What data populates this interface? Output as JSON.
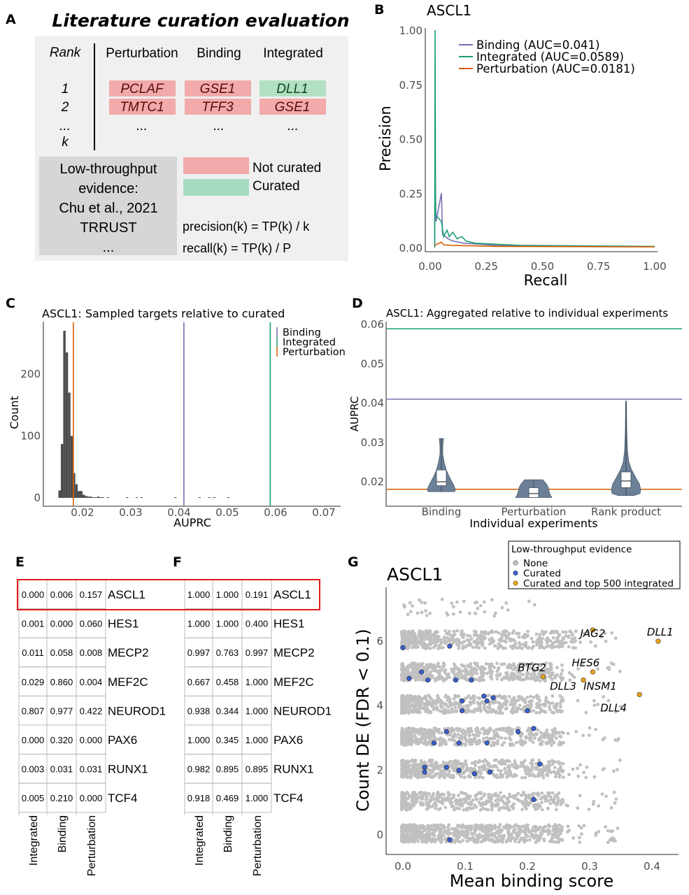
{
  "colors": {
    "binding": "#7570b3",
    "integrated": "#1b9e77",
    "perturbation": "#d95f02",
    "not_curated": "#f2aaaa",
    "curated": "#b3e0c3",
    "violin": "#6c8098",
    "gray_point": "#c0c0c0",
    "curated_point": "#3a5fcd",
    "top_point": "#e8a317",
    "highlight": "#e31a1c"
  },
  "panelA": {
    "letter": "A",
    "title": "Literature curation evaluation",
    "headers": {
      "rank": "Rank",
      "perturbation": "Perturbation",
      "binding": "Binding",
      "integrated": "Integrated"
    },
    "rows": [
      {
        "rank": "1",
        "perturbation": "PCLAF",
        "binding": "GSE1",
        "integrated": "DLL1",
        "integrated_curated": true
      },
      {
        "rank": "2",
        "perturbation": "TMTC1",
        "binding": "TFF3",
        "integrated": "GSE1",
        "integrated_curated": false
      }
    ],
    "ellipsis": "...",
    "rank_k": "k",
    "evidence_lines": [
      "Low-throughput",
      "evidence:",
      "Chu et al., 2021",
      "TRRUST",
      "..."
    ],
    "legend": {
      "not_curated": "Not curated",
      "curated": "Curated"
    },
    "precision_formula": "precision(k) = TP(k) / k",
    "recall_formula": "recall(k) = TP(k) / P"
  },
  "chart_data": [
    {
      "panel": "B",
      "type": "line",
      "title": "ASCL1",
      "xlabel": "Recall",
      "ylabel": "Precision",
      "xlim": [
        0,
        1
      ],
      "ylim": [
        0,
        1
      ],
      "xticks": [
        "0.00",
        "0.25",
        "0.50",
        "0.75",
        "1.00"
      ],
      "yticks": [
        "0.00",
        "0.25",
        "0.50",
        "0.75",
        "1.00"
      ],
      "legend_position": "top-right",
      "series": [
        {
          "name": "Binding (AUC=0.041)",
          "key": "binding",
          "points": [
            [
              0.02,
              0
            ],
            [
              0.022,
              0.33
            ],
            [
              0.026,
              0.12
            ],
            [
              0.05,
              0.25
            ],
            [
              0.055,
              0.06
            ],
            [
              0.08,
              0.04
            ],
            [
              0.1,
              0.03
            ],
            [
              0.15,
              0.02
            ],
            [
              0.3,
              0.01
            ],
            [
              1,
              0.004
            ]
          ]
        },
        {
          "name": "Integrated (AUC=0.0589)",
          "key": "integrated",
          "points": [
            [
              0.02,
              0
            ],
            [
              0.022,
              1.0
            ],
            [
              0.024,
              0.15
            ],
            [
              0.05,
              0.12
            ],
            [
              0.06,
              0.05
            ],
            [
              0.075,
              0.08
            ],
            [
              0.085,
              0.05
            ],
            [
              0.1,
              0.07
            ],
            [
              0.12,
              0.04
            ],
            [
              0.14,
              0.05
            ],
            [
              0.16,
              0.03
            ],
            [
              0.2,
              0.02
            ],
            [
              0.4,
              0.01
            ],
            [
              1,
              0.005
            ]
          ]
        },
        {
          "name": "Perturbation (AUC=0.0181)",
          "key": "perturbation",
          "points": [
            [
              0.02,
              0.01
            ],
            [
              0.05,
              0.025
            ],
            [
              0.06,
              0.012
            ],
            [
              0.1,
              0.01
            ],
            [
              0.3,
              0.005
            ],
            [
              1,
              0.003
            ]
          ]
        }
      ]
    },
    {
      "panel": "C",
      "type": "bar",
      "title": "ASCL1: Sampled targets relative to curated",
      "xlabel": "AUPRC",
      "ylabel": "Count",
      "xlim": [
        0.012,
        0.073
      ],
      "ylim": [
        -10,
        280
      ],
      "xticks": [
        "0.02",
        "0.03",
        "0.04",
        "0.05",
        "0.06",
        "0.07"
      ],
      "yticks": [
        "0",
        "100",
        "200"
      ],
      "bin_width": 0.0005,
      "bins": [
        [
          0.015,
          12
        ],
        [
          0.0155,
          87
        ],
        [
          0.016,
          270
        ],
        [
          0.0165,
          235
        ],
        [
          0.017,
          170
        ],
        [
          0.0175,
          100
        ],
        [
          0.018,
          40
        ],
        [
          0.0185,
          22
        ],
        [
          0.019,
          11
        ],
        [
          0.0195,
          11
        ],
        [
          0.02,
          5
        ],
        [
          0.0205,
          3
        ],
        [
          0.021,
          2
        ],
        [
          0.0215,
          2
        ],
        [
          0.022,
          1
        ],
        [
          0.0225,
          1
        ],
        [
          0.023,
          2
        ],
        [
          0.0235,
          1
        ],
        [
          0.024,
          1
        ],
        [
          0.025,
          1
        ],
        [
          0.029,
          1
        ],
        [
          0.031,
          1
        ],
        [
          0.032,
          1
        ],
        [
          0.039,
          1
        ],
        [
          0.044,
          1
        ],
        [
          0.046,
          1
        ],
        [
          0.047,
          1
        ],
        [
          0.05,
          1
        ]
      ],
      "reference_lines": [
        {
          "name": "Binding",
          "key": "binding",
          "value": 0.041
        },
        {
          "name": "Integrated",
          "key": "integrated",
          "value": 0.0589
        },
        {
          "name": "Perturbation",
          "key": "perturbation",
          "value": 0.0181
        }
      ],
      "legend_position": "top-right"
    },
    {
      "panel": "D",
      "type": "violin",
      "title": "ASCL1: Aggregated relative to individual experiments",
      "xlabel": "Individual experiments",
      "ylabel": "AUPRC",
      "ylim": [
        0.0135,
        0.061
      ],
      "yticks": [
        "0.02",
        "0.03",
        "0.04",
        "0.05",
        "0.06"
      ],
      "categories": [
        "Binding",
        "Perturbation",
        "Rank product"
      ],
      "boxes": [
        {
          "min": 0.0175,
          "q1": 0.019,
          "median": 0.02,
          "q3": 0.023,
          "max": 0.031
        },
        {
          "min": 0.016,
          "q1": 0.016,
          "median": 0.017,
          "q3": 0.0185,
          "max": 0.0205
        },
        {
          "min": 0.0165,
          "q1": 0.0185,
          "median": 0.0202,
          "q3": 0.0225,
          "max": 0.0405
        }
      ],
      "reference_lines": [
        {
          "key": "integrated",
          "value": 0.0589
        },
        {
          "key": "binding",
          "value": 0.041
        },
        {
          "key": "perturbation",
          "value": 0.0181
        }
      ]
    },
    {
      "panel": "G",
      "type": "scatter",
      "title": "ASCL1",
      "xlabel": "Mean binding score",
      "ylabel": "Count DE (FDR < 0.1)",
      "xlim": [
        -0.025,
        0.445
      ],
      "ylim": [
        -0.55,
        7.9
      ],
      "xticks": [
        "0.0",
        "0.1",
        "0.2",
        "0.3",
        "0.4"
      ],
      "yticks": [
        "0",
        "2",
        "4",
        "6"
      ],
      "legend": {
        "title": "Low-throughput evidence",
        "items": [
          "None",
          "Curated",
          "Curated and top 500 integrated"
        ]
      },
      "curated_points": [
        [
          0.0,
          5.75
        ],
        [
          0.075,
          5.8
        ],
        [
          0.01,
          4.8
        ],
        [
          0.03,
          5.0
        ],
        [
          0.04,
          4.75
        ],
        [
          0.085,
          4.75
        ],
        [
          0.11,
          4.75
        ],
        [
          0.095,
          4.1
        ],
        [
          0.13,
          4.25
        ],
        [
          0.135,
          4.1
        ],
        [
          0.145,
          4.2
        ],
        [
          0.095,
          3.8
        ],
        [
          0.2,
          3.8
        ],
        [
          0.07,
          3.15
        ],
        [
          0.05,
          2.8
        ],
        [
          0.09,
          2.8
        ],
        [
          0.135,
          2.8
        ],
        [
          0.185,
          3.15
        ],
        [
          0.21,
          3.25
        ],
        [
          0.035,
          2.05
        ],
        [
          0.035,
          1.9
        ],
        [
          0.07,
          2.05
        ],
        [
          0.09,
          1.95
        ],
        [
          0.115,
          1.85
        ],
        [
          0.14,
          1.9
        ],
        [
          0.22,
          2.15
        ],
        [
          0.21,
          1.05
        ],
        [
          0.075,
          -0.2
        ]
      ],
      "top_points": [
        {
          "label": "JAG2",
          "x": 0.305,
          "y": 6.3
        },
        {
          "label": "DLL1",
          "x": 0.41,
          "y": 5.95
        },
        {
          "label": "HES6",
          "x": 0.305,
          "y": 5.0
        },
        {
          "label": "BTG2",
          "x": 0.225,
          "y": 4.85
        },
        {
          "label": "DLL3",
          "x": 0.29,
          "y": 4.75
        },
        {
          "label": "INSM1",
          "x": 0.29,
          "y": 4.75
        },
        {
          "label": "DLL4",
          "x": 0.38,
          "y": 4.3
        }
      ]
    }
  ],
  "panelE": {
    "letter": "E",
    "columns": [
      "Integrated",
      "Binding",
      "Perturbation"
    ],
    "rows": [
      {
        "tf": "ASCL1",
        "values": [
          "0.000",
          "0.006",
          "0.157"
        ]
      },
      {
        "tf": "HES1",
        "values": [
          "0.001",
          "0.000",
          "0.060"
        ]
      },
      {
        "tf": "MECP2",
        "values": [
          "0.011",
          "0.058",
          "0.008"
        ]
      },
      {
        "tf": "MEF2C",
        "values": [
          "0.029",
          "0.860",
          "0.004"
        ]
      },
      {
        "tf": "NEUROD1",
        "values": [
          "0.807",
          "0.977",
          "0.422"
        ]
      },
      {
        "tf": "PAX6",
        "values": [
          "0.000",
          "0.320",
          "0.000"
        ]
      },
      {
        "tf": "RUNX1",
        "values": [
          "0.003",
          "0.031",
          "0.031"
        ]
      },
      {
        "tf": "TCF4",
        "values": [
          "0.005",
          "0.210",
          "0.000"
        ]
      }
    ]
  },
  "panelF": {
    "letter": "F",
    "columns": [
      "Integrated",
      "Binding",
      "Perturbation"
    ],
    "rows": [
      {
        "tf": "ASCL1",
        "values": [
          "1.000",
          "1.000",
          "0.191"
        ]
      },
      {
        "tf": "HES1",
        "values": [
          "1.000",
          "1.000",
          "0.400"
        ]
      },
      {
        "tf": "MECP2",
        "values": [
          "0.997",
          "0.763",
          "0.997"
        ]
      },
      {
        "tf": "MEF2C",
        "values": [
          "0.667",
          "0.458",
          "1.000"
        ]
      },
      {
        "tf": "NEUROD1",
        "values": [
          "0.938",
          "0.344",
          "1.000"
        ]
      },
      {
        "tf": "PAX6",
        "values": [
          "1.000",
          "0.345",
          "1.000"
        ]
      },
      {
        "tf": "RUNX1",
        "values": [
          "0.982",
          "0.895",
          "0.895"
        ]
      },
      {
        "tf": "TCF4",
        "values": [
          "0.918",
          "0.469",
          "1.000"
        ]
      }
    ]
  },
  "letters": {
    "B": "B",
    "C": "C",
    "D": "D",
    "G": "G"
  }
}
